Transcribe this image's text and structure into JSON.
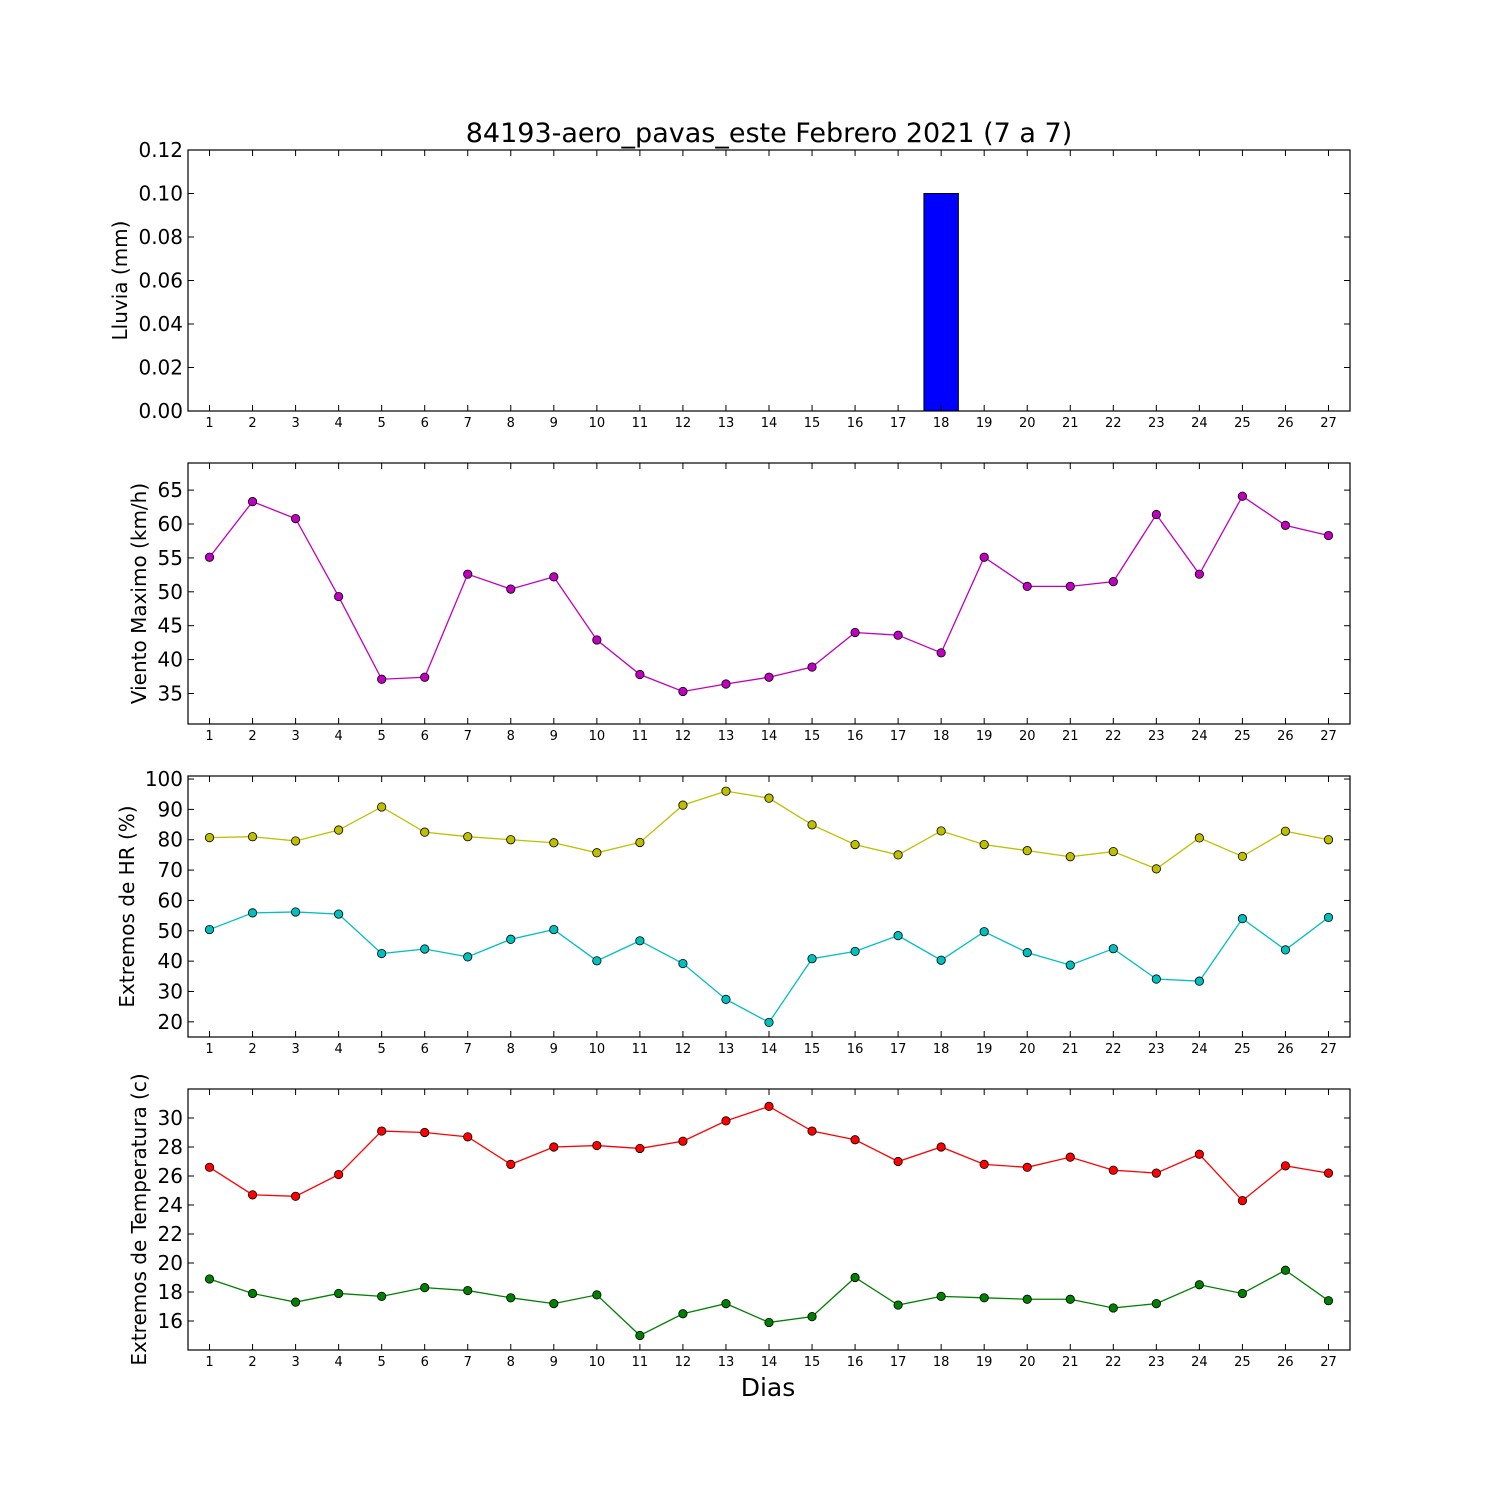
{
  "chart_data": {
    "title": "84193-aero_pavas_este Febrero 2021  (7 a 7)",
    "xlabel": "Dias",
    "x": [
      1,
      2,
      3,
      4,
      5,
      6,
      7,
      8,
      9,
      10,
      11,
      12,
      13,
      14,
      15,
      16,
      17,
      18,
      19,
      20,
      21,
      22,
      23,
      24,
      25,
      26,
      27
    ],
    "panels": [
      {
        "type": "bar",
        "ylabel": "Lluvia (mm)",
        "ylim": [
          0,
          0.12
        ],
        "yticks": [
          "0.00",
          "0.02",
          "0.04",
          "0.06",
          "0.08",
          "0.10",
          "0.12"
        ],
        "series": [
          {
            "color": "#0000ff",
            "values": [
              0,
              0,
              0,
              0,
              0,
              0,
              0,
              0,
              0,
              0,
              0,
              0,
              0,
              0,
              0,
              0,
              0,
              0.1,
              0,
              0,
              0,
              0,
              0,
              0,
              0,
              0,
              0
            ]
          }
        ]
      },
      {
        "type": "line",
        "ylabel": "Viento Maximo (km/h)",
        "ylim": [
          30.5,
          69
        ],
        "yticks": [
          "35",
          "40",
          "45",
          "50",
          "55",
          "60",
          "65"
        ],
        "series": [
          {
            "color": "#bf00bf",
            "values": [
              55.1,
              63.3,
              60.8,
              49.3,
              37.1,
              37.4,
              52.6,
              50.4,
              52.2,
              42.9,
              37.8,
              35.3,
              36.4,
              37.4,
              38.9,
              44.0,
              43.6,
              41.0,
              55.1,
              50.8,
              50.8,
              51.5,
              61.4,
              52.6,
              64.1,
              59.8,
              58.3
            ]
          }
        ]
      },
      {
        "type": "line",
        "ylabel": "Extremos de HR (%)",
        "ylim": [
          15,
          101
        ],
        "yticks": [
          "20",
          "30",
          "40",
          "50",
          "60",
          "70",
          "80",
          "90",
          "100"
        ],
        "series": [
          {
            "color": "#bfbf00",
            "values": [
              80.7,
              81.0,
              79.6,
              83.2,
              90.8,
              82.5,
              81.0,
              80.0,
              79.0,
              75.7,
              79.1,
              91.4,
              96.0,
              93.7,
              84.9,
              78.4,
              75.0,
              82.9,
              78.4,
              76.4,
              74.4,
              76.1,
              70.4,
              80.6,
              74.5,
              82.8,
              80.0
            ]
          },
          {
            "color": "#00bfbf",
            "values": [
              50.4,
              55.9,
              56.2,
              55.5,
              42.5,
              44.0,
              41.4,
              47.2,
              50.4,
              40.1,
              46.7,
              39.2,
              27.4,
              19.8,
              40.8,
              43.2,
              48.4,
              40.3,
              49.7,
              42.8,
              38.7,
              44.1,
              34.1,
              33.4,
              54.0,
              43.7,
              54.4
            ]
          }
        ]
      },
      {
        "type": "line",
        "ylabel": "Extremos de Temperatura (c)",
        "ylim": [
          14,
          32
        ],
        "yticks": [
          "16",
          "18",
          "20",
          "22",
          "24",
          "26",
          "28",
          "30"
        ],
        "series": [
          {
            "color": "#ff0000",
            "values": [
              26.6,
              24.7,
              24.6,
              26.1,
              29.1,
              29.0,
              28.7,
              26.8,
              28.0,
              28.1,
              27.9,
              28.4,
              29.8,
              30.8,
              29.1,
              28.5,
              27.0,
              28.0,
              26.8,
              26.6,
              27.3,
              26.4,
              26.2,
              27.5,
              24.3,
              26.7,
              26.2
            ]
          },
          {
            "color": "#008000",
            "values": [
              18.9,
              17.9,
              17.3,
              17.9,
              17.7,
              18.3,
              18.1,
              17.6,
              17.2,
              17.8,
              15.0,
              16.5,
              17.2,
              15.9,
              16.3,
              19.0,
              17.1,
              17.7,
              17.6,
              17.5,
              17.5,
              16.9,
              17.2,
              18.5,
              17.9,
              19.5,
              17.4
            ]
          }
        ]
      }
    ]
  }
}
